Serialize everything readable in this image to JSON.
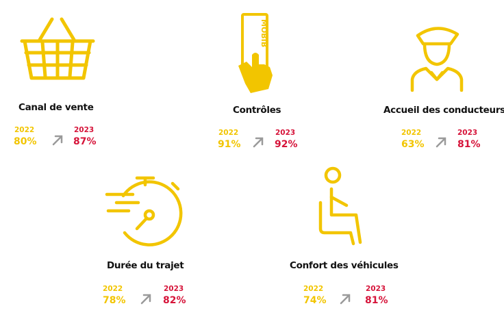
{
  "colors": {
    "accent_yellow": "#f2c500",
    "accent_red": "#d6143a",
    "arrow_gray": "#9a9a9a",
    "text": "#111111"
  },
  "items": [
    {
      "title": "Canal de vente",
      "year_a": "2022",
      "value_a": "80%",
      "year_b": "2023",
      "value_b": "87%",
      "icon": "shopping-basket-icon"
    },
    {
      "title": "Contrôles",
      "year_a": "2022",
      "value_a": "91%",
      "year_b": "2023",
      "value_b": "92%",
      "icon": "hand-holding-ticket-icon",
      "icon_text": "MOBIB"
    },
    {
      "title": "Accueil des conducteurs",
      "year_a": "2022",
      "value_a": "63%",
      "year_b": "2023",
      "value_b": "81%",
      "icon": "driver-icon"
    },
    {
      "title": "Durée du trajet",
      "year_a": "2022",
      "value_a": "78%",
      "year_b": "2023",
      "value_b": "82%",
      "icon": "stopwatch-icon"
    },
    {
      "title": "Confort des véhicules",
      "year_a": "2022",
      "value_a": "74%",
      "year_b": "2023",
      "value_b": "81%",
      "icon": "seated-person-icon"
    }
  ]
}
